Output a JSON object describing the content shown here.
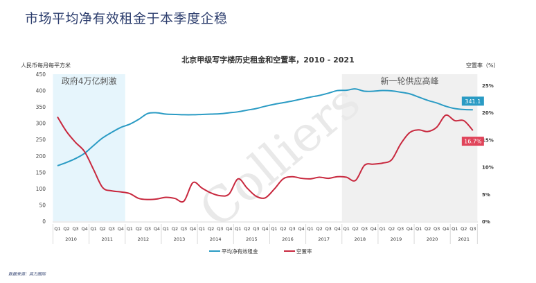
{
  "page": {
    "title": "市场平均净有效租金于本季度企稳",
    "source": "数据来源：高力国际"
  },
  "chart_data": {
    "type": "line",
    "title": "北京甲级写字楼历史租金和空置率，2010 - 2021",
    "ylabel": "人民币每月每平方米",
    "ylabel_right": "空置率（%）",
    "ylim": [
      0,
      450
    ],
    "ylim_right": [
      0,
      25
    ],
    "yticks": [
      "0",
      "50",
      "100",
      "150",
      "200",
      "250",
      "300",
      "350",
      "400",
      "450"
    ],
    "yticks_right": [
      "0%",
      "5%",
      "10%",
      "15%",
      "20%",
      "25%"
    ],
    "years": [
      "2010",
      "2011",
      "2012",
      "2013",
      "2014",
      "2015",
      "2016",
      "2017",
      "2018",
      "2019",
      "2020",
      "2021"
    ],
    "categories": [
      "2010 Q1",
      "2010 Q2",
      "2010 Q3",
      "2010 Q4",
      "2011 Q1",
      "2011 Q2",
      "2011 Q3",
      "2011 Q4",
      "2012 Q1",
      "2012 Q2",
      "2012 Q3",
      "2012 Q4",
      "2013 Q1",
      "2013 Q2",
      "2013 Q3",
      "2013 Q4",
      "2014 Q1",
      "2014 Q2",
      "2014 Q3",
      "2014 Q4",
      "2015 Q1",
      "2015 Q2",
      "2015 Q3",
      "2015 Q4",
      "2016 Q1",
      "2016 Q2",
      "2016 Q3",
      "2016 Q4",
      "2017 Q1",
      "2017 Q2",
      "2017 Q3",
      "2017 Q4",
      "2018 Q1",
      "2018 Q2",
      "2018 Q3",
      "2018 Q4",
      "2019 Q1",
      "2019 Q2",
      "2019 Q3",
      "2019 Q4",
      "2020 Q1",
      "2020 Q2",
      "2020 Q3",
      "2020 Q4",
      "2021 Q1",
      "2021 Q2",
      "2021 Q3"
    ],
    "quarter_labels": [
      "Q1",
      "Q2",
      "Q3",
      "Q4"
    ],
    "series": [
      {
        "name": "平均净有效租金",
        "axis": "left",
        "color": "#2a9bc4",
        "values": [
          170,
          180,
          192,
          208,
          232,
          255,
          272,
          287,
          297,
          312,
          330,
          332,
          328,
          327,
          326,
          326,
          327,
          328,
          329,
          332,
          335,
          340,
          345,
          352,
          358,
          363,
          368,
          374,
          380,
          385,
          392,
          400,
          401,
          405,
          398,
          398,
          400,
          399,
          395,
          390,
          380,
          370,
          362,
          352,
          345,
          342,
          341.1
        ]
      },
      {
        "name": "空置率",
        "axis": "right",
        "color": "#c8283e",
        "values": [
          19.2,
          16.5,
          14.5,
          12.8,
          9.5,
          6.2,
          5.6,
          5.4,
          5.1,
          4.2,
          4.0,
          4.1,
          4.4,
          4.2,
          3.7,
          7.1,
          6.1,
          5.2,
          4.7,
          5.0,
          7.8,
          6.1,
          4.6,
          4.3,
          5.9,
          7.8,
          8.2,
          7.9,
          7.8,
          8.1,
          7.9,
          8.2,
          8.1,
          7.5,
          10.3,
          10.5,
          10.7,
          11.3,
          14.2,
          16.3,
          16.8,
          16.5,
          17.3,
          19.5,
          18.5,
          18.5,
          16.7
        ]
      }
    ],
    "end_labels": {
      "rent": "341.1",
      "vacancy": "16.7%"
    },
    "annotations": [
      {
        "text": "政府4万亿刺激",
        "range": [
          "2010 Q1",
          "2011 Q4"
        ],
        "band_color": "#e6f5fc"
      },
      {
        "text": "新一轮供应高峰",
        "range": [
          "2018 Q1",
          "2021 Q3"
        ],
        "band_color": "#f0f0f0"
      }
    ],
    "legend": {
      "position": "bottom",
      "items": [
        "平均净有效租金",
        "空置率"
      ]
    },
    "watermark": "Colliers",
    "grid": false
  }
}
